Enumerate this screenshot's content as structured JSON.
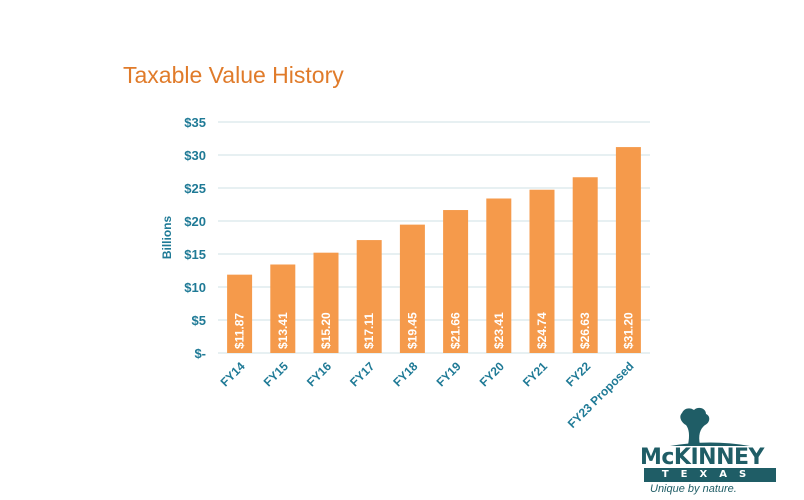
{
  "title": "Taxable Value History",
  "chart_data": {
    "type": "bar",
    "title": "Taxable Value History",
    "ylabel": "Billions",
    "xlabel": "",
    "ylim": [
      0,
      35
    ],
    "yticks": [
      0,
      5,
      10,
      15,
      20,
      25,
      30,
      35
    ],
    "ytick_labels": [
      "$-",
      "$5",
      "$10",
      "$15",
      "$20",
      "$25",
      "$30",
      "$35"
    ],
    "grid": true,
    "categories": [
      "FY14",
      "FY15",
      "FY16",
      "FY17",
      "FY18",
      "FY19",
      "FY20",
      "FY21",
      "FY22",
      "FY23 Proposed"
    ],
    "values": [
      11.87,
      13.41,
      15.2,
      17.11,
      19.45,
      21.66,
      23.41,
      24.74,
      26.63,
      31.2
    ],
    "data_labels": [
      "$11.87",
      "$13.41",
      "$15.20",
      "$17.11",
      "$19.45",
      "$21.66",
      "$23.41",
      "$24.74",
      "$26.63",
      "$31.20"
    ],
    "colors": {
      "bar": "#f59a4b",
      "axis_text": "#1f7a96",
      "grid": "#cfe0e6",
      "label": "#ffffff"
    }
  },
  "logo": {
    "name": "McKINNEY",
    "state": "TEXAS",
    "tagline": "Unique by nature.",
    "color": "#1f5d66"
  }
}
